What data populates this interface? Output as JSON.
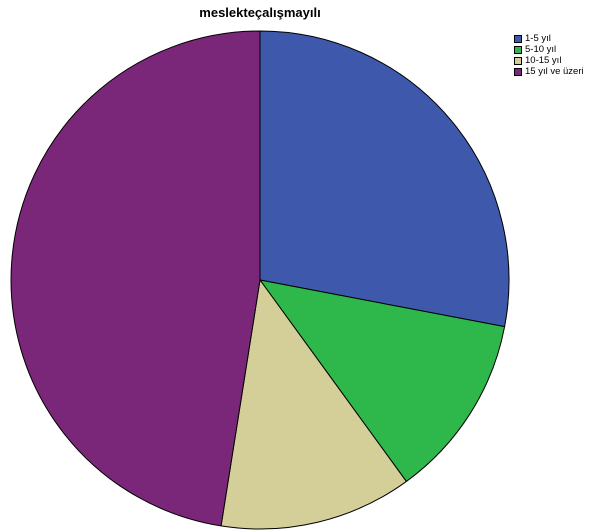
{
  "chart_data": {
    "type": "pie",
    "title": "meslekteçalışmayılı",
    "categories": [
      "1-5 yıl",
      "5-10 yıl",
      "10-15 yıl",
      "15 yıl ve üzeri"
    ],
    "values": [
      28,
      12,
      12.5,
      47.5
    ],
    "colors": [
      "#3e58ac",
      "#2eb84b",
      "#d4cf99",
      "#7b2779"
    ],
    "legend_position": "top-right",
    "start_angle_deg": 0,
    "direction": "clockwise"
  }
}
